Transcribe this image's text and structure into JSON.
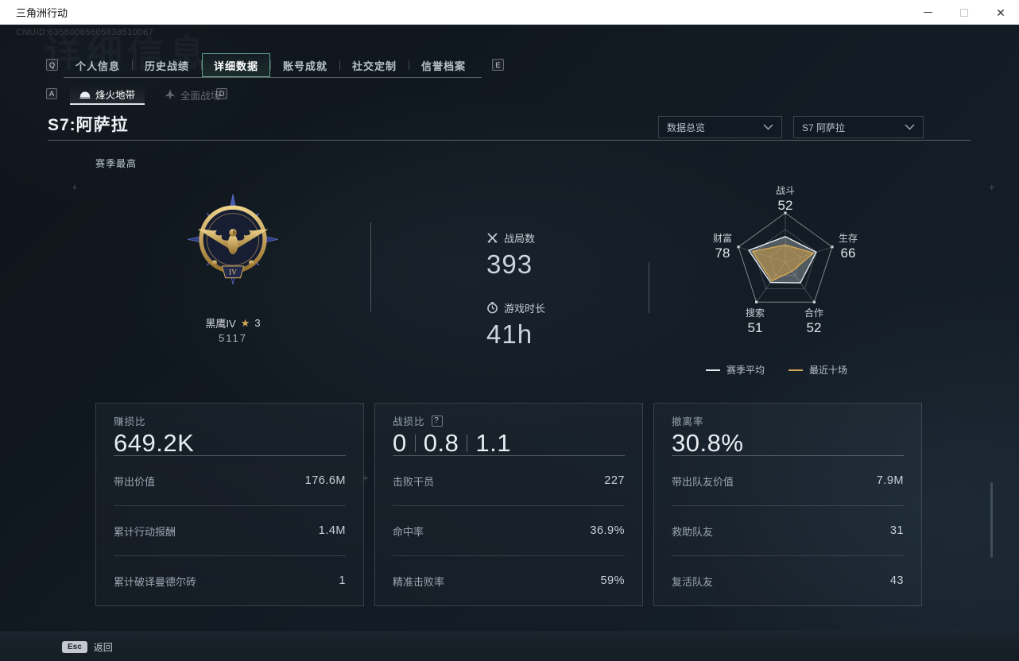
{
  "window": {
    "title": "三角洲行动"
  },
  "header": {
    "uid": "CNUID:63580085605838510067"
  },
  "decorations": {
    "plus": "+",
    "watermark": "详细信息"
  },
  "tabs": {
    "prev_key": "Q",
    "next_key": "E",
    "items": [
      {
        "label": "个人信息",
        "active": false
      },
      {
        "label": "历史战绩",
        "active": false
      },
      {
        "label": "详细数据",
        "active": true
      },
      {
        "label": "账号成就",
        "active": false
      },
      {
        "label": "社交定制",
        "active": false
      },
      {
        "label": "信誉档案",
        "active": false
      }
    ]
  },
  "subtabs": {
    "prev_key": "A",
    "next_key": "D",
    "items": [
      {
        "label": "烽火地带",
        "active": true
      },
      {
        "label": "全面战场",
        "active": false
      }
    ]
  },
  "section": {
    "title": "S7:阿萨拉",
    "season_best": "赛季最高"
  },
  "filters": {
    "overview": "数据总览",
    "season": "S7 阿萨拉"
  },
  "medal": {
    "name": "黑鹰IV",
    "star": "★",
    "star_count": "3",
    "score": "5117",
    "tier": "IV"
  },
  "overview_stats": [
    {
      "icon": "crossed-swords",
      "label": "战局数",
      "value": "393"
    },
    {
      "icon": "clock",
      "label": "游戏时长",
      "value": "41h"
    }
  ],
  "chart_data": {
    "type": "radar",
    "axes": [
      "战斗",
      "生存",
      "合作",
      "搜索",
      "财富"
    ],
    "axis_values_shown": [
      52,
      66,
      52,
      51,
      78
    ],
    "max": 100,
    "levels": 3,
    "legend_position": "bottom",
    "series": [
      {
        "name": "赛季平均",
        "values": [
          52,
          66,
          52,
          51,
          78
        ],
        "color": "#e3e9ee",
        "fill": "rgba(228,234,240,0.30)"
      },
      {
        "name": "最近十场",
        "values": [
          35,
          60,
          23,
          47,
          70
        ],
        "color": "#d2a855",
        "fill": "rgba(205,160,75,0.55)"
      }
    ]
  },
  "cards": [
    {
      "title": "赚损比",
      "value": "649.2K",
      "rows": [
        {
          "label": "带出价值",
          "value": "176.6M"
        },
        {
          "label": "累计行动报酬",
          "value": "1.4M"
        },
        {
          "label": "累计破译曼德尔砖",
          "value": "1"
        }
      ]
    },
    {
      "title": "战损比",
      "help_icon": "?",
      "value_parts": [
        "0",
        "0.8",
        "1.1"
      ],
      "rows": [
        {
          "label": "击败干员",
          "value": "227"
        },
        {
          "label": "命中率",
          "value": "36.9%"
        },
        {
          "label": "精准击败率",
          "value": "59%"
        }
      ]
    },
    {
      "title": "撤离率",
      "value": "30.8%",
      "rows": [
        {
          "label": "带出队友价值",
          "value": "7.9M"
        },
        {
          "label": "救助队友",
          "value": "31"
        },
        {
          "label": "复活队友",
          "value": "43"
        }
      ]
    }
  ],
  "footer": {
    "key": "Esc",
    "label": "返回"
  },
  "colors": {
    "accent_teal": "#5f9e8b",
    "accent_gold": "#d2a855",
    "background": "#10171f"
  }
}
